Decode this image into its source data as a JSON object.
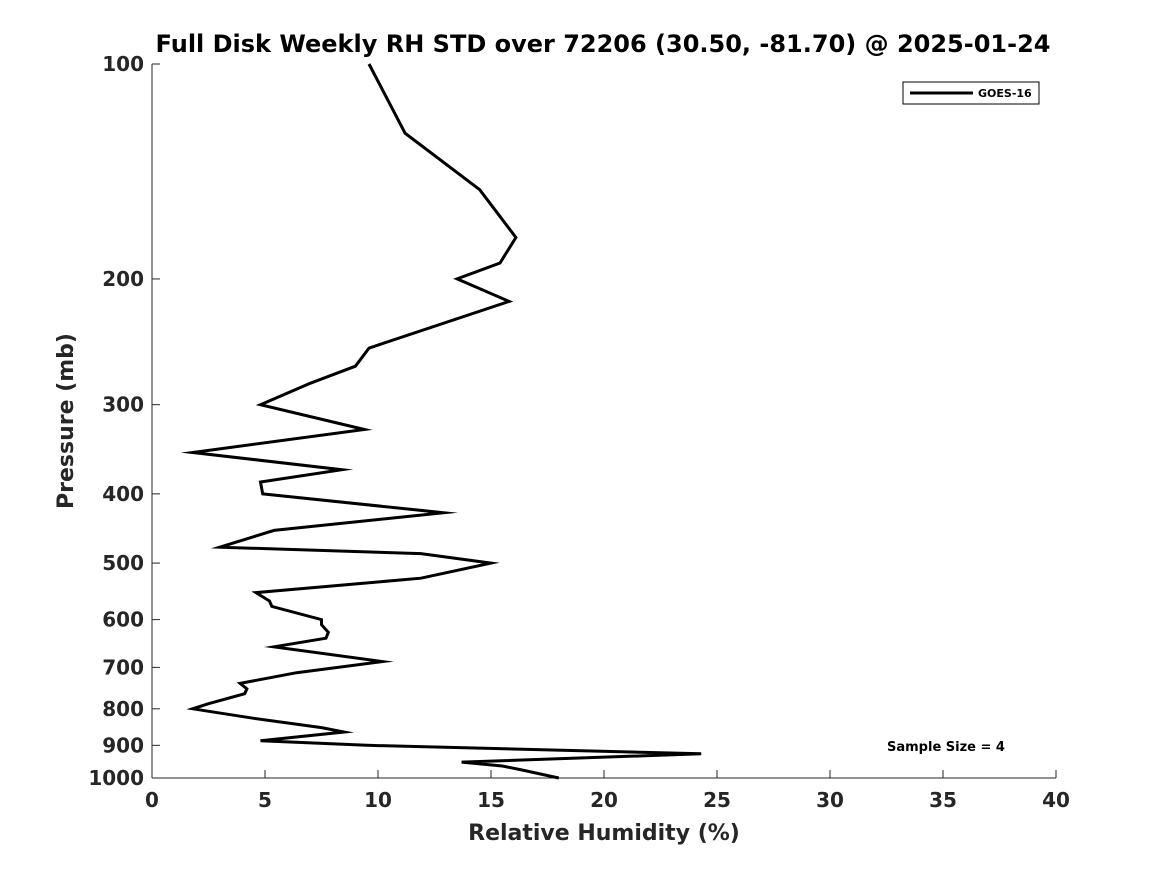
{
  "chart_data": {
    "type": "line",
    "title": "Full Disk Weekly RH STD over 72206 (30.50, -81.70) @ 2025-01-24",
    "xlabel": "Relative Humidity (%)",
    "ylabel": "Pressure (mb)",
    "xlim": [
      0,
      40
    ],
    "ylim": [
      100,
      1000
    ],
    "yscale": "log",
    "y_reversed": true,
    "xticks": [
      0,
      5,
      10,
      15,
      20,
      25,
      30,
      35,
      40
    ],
    "yticks": [
      100,
      200,
      300,
      400,
      500,
      600,
      700,
      800,
      900,
      1000
    ],
    "grid": false,
    "legend_position": "top-right",
    "series": [
      {
        "name": "GOES-16",
        "color": "#000000",
        "x": [
          9.6,
          11.2,
          14.5,
          16.1,
          15.4,
          13.5,
          15.8,
          9.6,
          9.0,
          7.0,
          4.8,
          9.4,
          1.8,
          8.4,
          4.8,
          4.9,
          12.9,
          5.4,
          3.0,
          11.9,
          15.0,
          11.9,
          4.6,
          5.2,
          5.3,
          7.5,
          7.5,
          7.8,
          7.7,
          5.4,
          10.2,
          6.4,
          3.9,
          4.2,
          4.1,
          2.5,
          1.8,
          4.5,
          7.5,
          8.5,
          4.8,
          9.5,
          24.3,
          13.7,
          15.5,
          16.4,
          18.0
        ],
        "y": [
          100,
          125,
          150,
          175,
          190,
          200,
          215,
          250,
          265,
          280,
          300,
          325,
          350,
          370,
          385,
          400,
          425,
          450,
          475,
          485,
          500,
          525,
          550,
          565,
          575,
          600,
          610,
          625,
          637,
          655,
          687,
          712,
          737,
          750,
          762,
          787,
          800,
          825,
          850,
          862,
          887,
          900,
          925,
          950,
          962,
          975,
          1000
        ]
      }
    ],
    "annotations": [
      "Sample Size = 4"
    ]
  }
}
